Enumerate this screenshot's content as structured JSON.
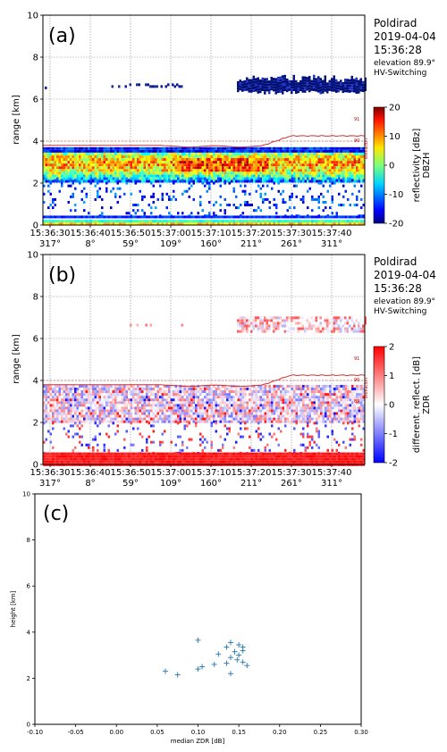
{
  "info": {
    "station": "Poldirad",
    "date": "2019-04-04",
    "time": "15:36:28",
    "elevation_text": "elevation 89.9°",
    "mode": "HV-Switching"
  },
  "chart_data": [
    {
      "id": "a",
      "type": "heatmap",
      "panel_label": "(a)",
      "ylabel": "range [km]",
      "ylim": [
        0,
        10
      ],
      "yticks": [
        "0",
        "2",
        "4",
        "6",
        "8",
        "10"
      ],
      "x_time_ticks": [
        "15:36:30",
        "15:36:40",
        "15:36:50",
        "15:37:00",
        "15:37:10",
        "15:37:20",
        "15:37:30",
        "15:37:40"
      ],
      "x_azimuth_ticks": [
        "317°",
        "8°",
        "59°",
        "109°",
        "160°",
        "211°",
        "261°",
        "311°"
      ],
      "colorbar": {
        "label": "reflectivity [dBz]",
        "sublabel": "DBZH",
        "ticks": [
          "20",
          "10",
          "0",
          "-10",
          "-20"
        ],
        "range": [
          -20,
          20
        ]
      },
      "elevation_ticks": [
        "91",
        "90",
        "89"
      ],
      "elevation_axis_label": "elevation"
    },
    {
      "id": "b",
      "type": "heatmap",
      "panel_label": "(b)",
      "ylabel": "range [km]",
      "ylim": [
        0,
        10
      ],
      "yticks": [
        "0",
        "2",
        "4",
        "6",
        "8",
        "10"
      ],
      "x_time_ticks": [
        "15:36:30",
        "15:36:40",
        "15:36:50",
        "15:37:00",
        "15:37:10",
        "15:37:20",
        "15:37:30",
        "15:37:40"
      ],
      "x_azimuth_ticks": [
        "317°",
        "8°",
        "59°",
        "109°",
        "160°",
        "211°",
        "261°",
        "311°"
      ],
      "colorbar": {
        "label": "different. reflect. [dB]",
        "sublabel": "ZDR",
        "ticks": [
          "2",
          "1",
          "0",
          "-1",
          "-2"
        ],
        "range": [
          -2,
          2
        ]
      },
      "elevation_ticks": [
        "91",
        "90",
        "89"
      ],
      "elevation_axis_label": "elevation"
    },
    {
      "id": "c",
      "type": "scatter",
      "panel_label": "(c)",
      "xlabel": "median ZDR [dB]",
      "ylabel": "height [km]",
      "xlim": [
        -0.1,
        0.3
      ],
      "ylim": [
        0,
        10
      ],
      "xticks": [
        "-0.10",
        "-0.05",
        "0.00",
        "0.05",
        "0.10",
        "0.15",
        "0.20",
        "0.25",
        "0.30"
      ],
      "yticks": [
        "0",
        "2",
        "4",
        "6",
        "8",
        "10"
      ],
      "points": [
        [
          0.1,
          3.65
        ],
        [
          0.14,
          3.55
        ],
        [
          0.15,
          3.45
        ],
        [
          0.135,
          3.35
        ],
        [
          0.155,
          3.35
        ],
        [
          0.145,
          3.15
        ],
        [
          0.155,
          3.2
        ],
        [
          0.125,
          3.05
        ],
        [
          0.15,
          3.0
        ],
        [
          0.14,
          2.9
        ],
        [
          0.148,
          2.8
        ],
        [
          0.155,
          2.7
        ],
        [
          0.12,
          2.6
        ],
        [
          0.135,
          2.65
        ],
        [
          0.16,
          2.55
        ],
        [
          0.105,
          2.5
        ],
        [
          0.1,
          2.4
        ],
        [
          0.06,
          2.3
        ],
        [
          0.14,
          2.2
        ],
        [
          0.075,
          2.15
        ]
      ],
      "marker_color": "#1f77b4"
    }
  ]
}
